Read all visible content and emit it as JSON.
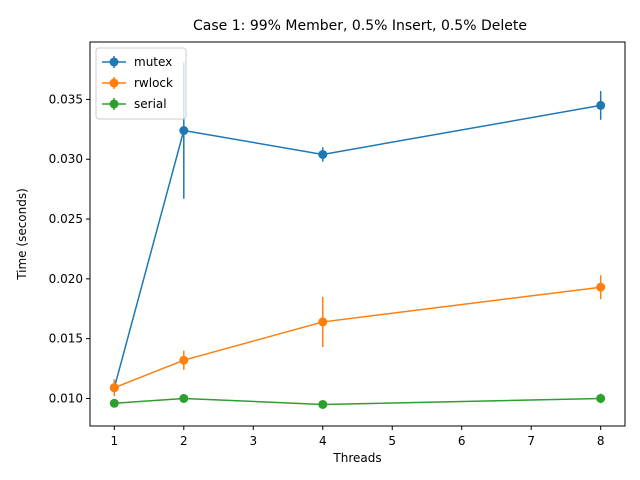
{
  "chart_data": {
    "type": "line",
    "title": "Case 1: 99% Member, 0.5% Insert, 0.5% Delete",
    "xlabel": "Threads",
    "ylabel": "Time (seconds)",
    "x": [
      1,
      2,
      4,
      8
    ],
    "xlim": [
      0.65,
      8.35
    ],
    "ylim": [
      0.0077,
      0.0398
    ],
    "xticks": [
      1,
      2,
      3,
      4,
      5,
      6,
      7,
      8
    ],
    "yticks": [
      0.01,
      0.015,
      0.02,
      0.025,
      0.03,
      0.035
    ],
    "ytick_labels": [
      "0.010",
      "0.015",
      "0.020",
      "0.025",
      "0.030",
      "0.035"
    ],
    "grid": false,
    "legend_position": "top-left",
    "series": [
      {
        "name": "mutex",
        "color": "#1f77b4",
        "values": [
          0.0109,
          0.0324,
          0.0304,
          0.0345
        ],
        "errors": [
          0.0007,
          0.0057,
          0.0006,
          0.0012
        ]
      },
      {
        "name": "rwlock",
        "color": "#ff7f0e",
        "values": [
          0.0109,
          0.0132,
          0.0164,
          0.0193
        ],
        "errors": [
          0.0007,
          0.0008,
          0.0021,
          0.001
        ]
      },
      {
        "name": "serial",
        "color": "#2ca02c",
        "values": [
          0.0096,
          0.01,
          0.0095,
          0.01
        ],
        "errors": [
          0.0002,
          0.0002,
          0.0002,
          0.0004
        ]
      }
    ]
  }
}
